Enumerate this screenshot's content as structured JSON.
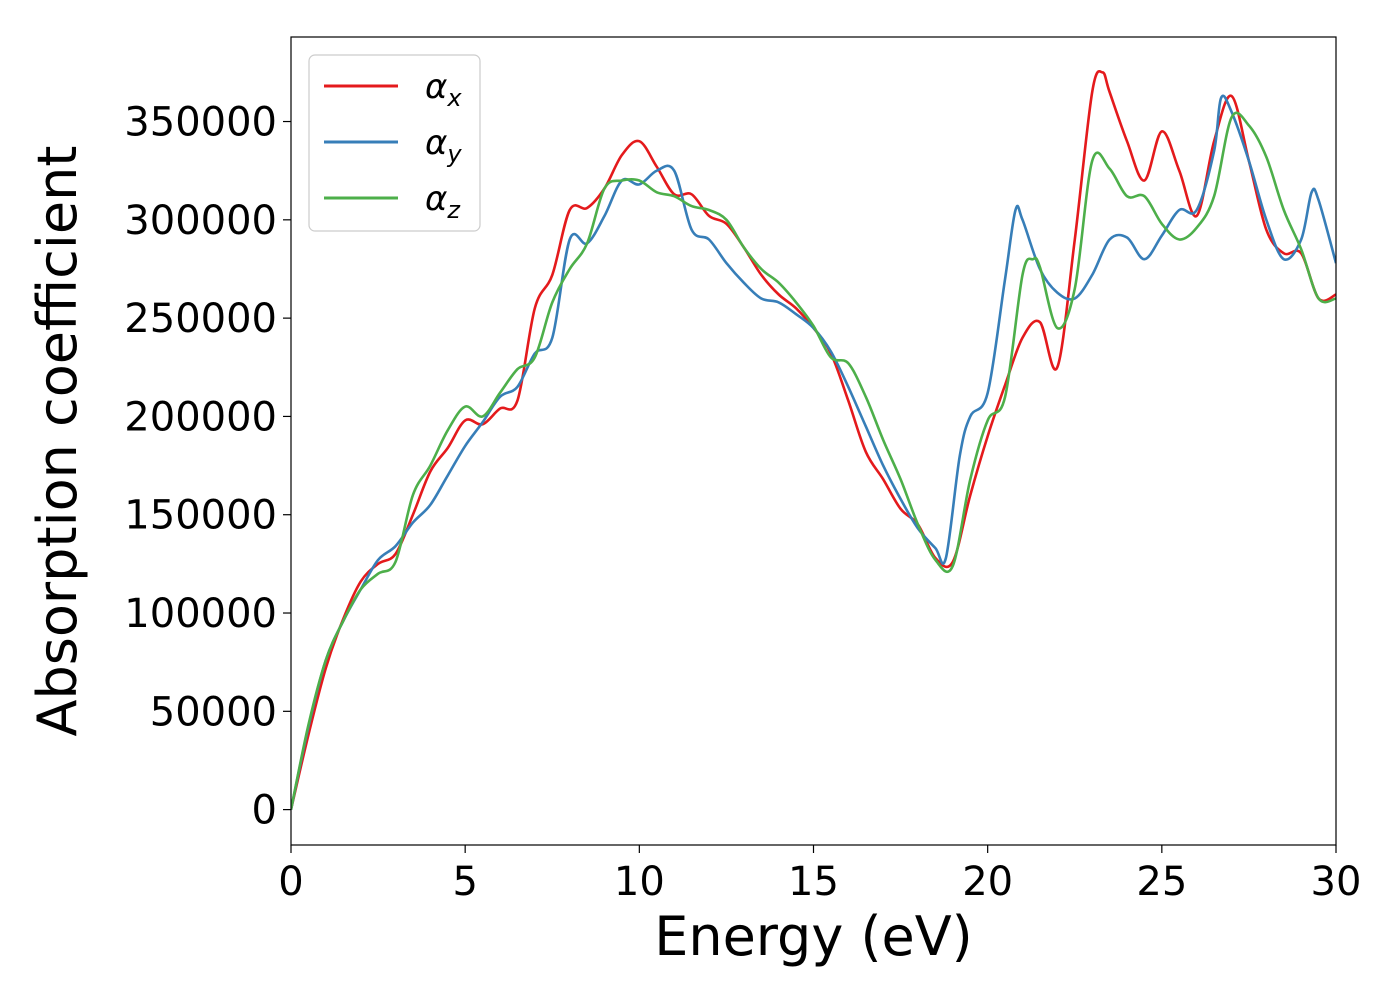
{
  "chart_data": {
    "type": "line",
    "xlabel": "Energy (eV)",
    "ylabel": "Absorption coefficient",
    "xlim": [
      0,
      30
    ],
    "ylim": [
      -18000,
      393000
    ],
    "xticks": [
      0,
      5,
      10,
      15,
      20,
      25,
      30
    ],
    "yticks": [
      0,
      50000,
      100000,
      150000,
      200000,
      250000,
      300000,
      350000
    ],
    "grid": false,
    "legend_position": "top-left",
    "series": [
      {
        "name": "α_x",
        "symbol": "α",
        "subscript": "x",
        "color": "#e41a1c",
        "x": [
          0,
          0.5,
          1,
          1.5,
          2,
          2.5,
          3,
          3.5,
          4,
          4.5,
          5,
          5.5,
          6,
          6.5,
          7,
          7.5,
          8,
          8.5,
          9,
          9.5,
          10,
          10.5,
          11,
          11.5,
          12,
          12.5,
          13,
          13.5,
          14,
          14.5,
          15,
          15.5,
          16,
          16.5,
          17,
          17.5,
          18,
          18.5,
          19,
          19.5,
          20,
          20.5,
          21,
          21.5,
          22,
          22.5,
          23,
          23.3,
          23.5,
          24,
          24.5,
          25,
          25.5,
          26,
          26.5,
          27,
          27.5,
          28,
          28.5,
          29,
          29.5,
          30
        ],
        "y": [
          0,
          38000,
          72000,
          97000,
          116000,
          125000,
          130000,
          150000,
          172000,
          184000,
          198000,
          196000,
          204000,
          208000,
          255000,
          272000,
          305000,
          306000,
          316000,
          333000,
          340000,
          327000,
          313000,
          313000,
          302000,
          298000,
          286000,
          272000,
          262000,
          255000,
          245000,
          232000,
          208000,
          182000,
          168000,
          153000,
          145000,
          128000,
          126000,
          160000,
          190000,
          216000,
          240000,
          248000,
          225000,
          290000,
          365000,
          375000,
          365000,
          340000,
          320000,
          345000,
          325000,
          302000,
          340000,
          363000,
          330000,
          295000,
          283000,
          283000,
          260000,
          262000
        ]
      },
      {
        "name": "α_y",
        "symbol": "α",
        "subscript": "y",
        "color": "#377eb8",
        "x": [
          0,
          0.5,
          1,
          1.5,
          2,
          2.5,
          3,
          3.5,
          4,
          4.5,
          5,
          5.5,
          6,
          6.5,
          7,
          7.5,
          8,
          8.5,
          9,
          9.5,
          10,
          10.5,
          11,
          11.5,
          12,
          12.5,
          13,
          13.5,
          14,
          14.5,
          15,
          15.5,
          16,
          16.5,
          17,
          17.5,
          18,
          18.5,
          18.8,
          19.2,
          19.5,
          20,
          20.5,
          20.8,
          21,
          21.5,
          22,
          22.5,
          23,
          23.5,
          24,
          24.5,
          25,
          25.5,
          26,
          26.5,
          26.7,
          27,
          27.5,
          28,
          28.5,
          29,
          29.3,
          29.5,
          30
        ],
        "y": [
          0,
          42000,
          76000,
          96000,
          112000,
          127000,
          134000,
          146000,
          155000,
          170000,
          185000,
          197000,
          210000,
          215000,
          232000,
          240000,
          290000,
          288000,
          302000,
          320000,
          318000,
          325000,
          325000,
          295000,
          290000,
          278000,
          268000,
          260000,
          258000,
          252000,
          245000,
          233000,
          215000,
          195000,
          175000,
          158000,
          143000,
          133000,
          128000,
          180000,
          200000,
          212000,
          270000,
          305000,
          300000,
          275000,
          263000,
          260000,
          272000,
          290000,
          291000,
          280000,
          292000,
          305000,
          305000,
          335000,
          362000,
          355000,
          330000,
          300000,
          280000,
          290000,
          314000,
          310000,
          278000
        ]
      },
      {
        "name": "α_z",
        "symbol": "α",
        "subscript": "z",
        "color": "#4daf4a",
        "x": [
          0,
          0.5,
          1,
          1.5,
          2,
          2.5,
          3,
          3.5,
          4,
          4.5,
          5,
          5.5,
          6,
          6.5,
          7,
          7.5,
          8,
          8.5,
          9,
          9.5,
          10,
          10.5,
          11,
          11.5,
          12,
          12.5,
          13,
          13.5,
          14,
          14.5,
          15,
          15.5,
          16,
          16.5,
          17,
          17.5,
          18,
          18.5,
          19,
          19.5,
          20,
          20.5,
          21,
          21.3,
          21.5,
          22,
          22.5,
          23,
          23.5,
          24,
          24.5,
          25,
          25.5,
          26,
          26.5,
          27,
          27.5,
          28,
          28.5,
          29,
          29.5,
          30
        ],
        "y": [
          0,
          43000,
          76000,
          96000,
          112000,
          120000,
          126000,
          160000,
          175000,
          193000,
          205000,
          200000,
          212000,
          224000,
          230000,
          258000,
          275000,
          288000,
          316000,
          320000,
          320000,
          314000,
          312000,
          307000,
          305000,
          300000,
          286000,
          275000,
          268000,
          258000,
          246000,
          230000,
          227000,
          210000,
          188000,
          168000,
          145000,
          127000,
          124000,
          168000,
          198000,
          210000,
          272000,
          280000,
          276000,
          245000,
          265000,
          330000,
          326000,
          312000,
          312000,
          298000,
          290000,
          296000,
          312000,
          352000,
          348000,
          332000,
          305000,
          285000,
          260000,
          260000
        ]
      }
    ]
  }
}
